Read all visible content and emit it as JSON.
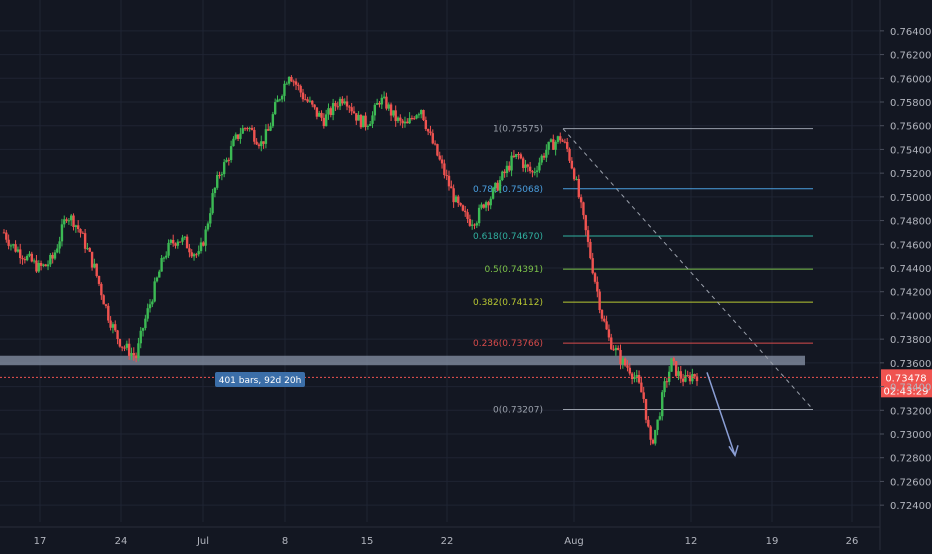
{
  "chart_data": {
    "type": "candlestick",
    "instrument_hint": "",
    "colors": {
      "background": "#131722",
      "up": "#26a69a",
      "up_body": "#3cba54",
      "down": "#ef5350",
      "grid": "#1f2433",
      "axis_text": "#b2b5be",
      "support_band": "#8a94a8",
      "last_price_badge": "#ef5350",
      "range_label_bg": "#3b6ea8",
      "projection_arrow": "#8b9fd6",
      "fib_1": "#9aa0ab",
      "fib_0786": "#4a9fe0",
      "fib_0618": "#30b0a0",
      "fib_05": "#7cc24a",
      "fib_0382": "#b8c832",
      "fib_0236": "#d84b4b",
      "fib_0": "#9aa0ab"
    },
    "y_axis": {
      "ylim": [
        0.723,
        0.765
      ],
      "ticks": [
        "0.76400",
        "0.76200",
        "0.76000",
        "0.75800",
        "0.75600",
        "0.75400",
        "0.75200",
        "0.75000",
        "0.74800",
        "0.74600",
        "0.74400",
        "0.74200",
        "0.74000",
        "0.73800",
        "0.73600",
        "0.73400",
        "0.73200",
        "0.73000",
        "0.72800",
        "0.72600",
        "0.72400"
      ]
    },
    "x_axis": {
      "tick_labels": [
        "17",
        "24",
        "Jul",
        "8",
        "15",
        "22",
        "Aug",
        "12",
        "19",
        "26"
      ]
    },
    "last_price": {
      "value": 0.73478,
      "label": "0.73478",
      "timer": "02:43:29"
    },
    "range_label": "401 bars, 92d 20h",
    "support_zone": [
      0.7366,
      0.7358
    ],
    "fibonacci": [
      {
        "label": "1(0.75575)",
        "value": 0.75575,
        "key": "fib_1"
      },
      {
        "label": "0.786(0.75068)",
        "value": 0.75068,
        "key": "fib_0786"
      },
      {
        "label": "0.618(0.74670)",
        "value": 0.7467,
        "key": "fib_0618"
      },
      {
        "label": "0.5(0.74391)",
        "value": 0.74391,
        "key": "fib_05"
      },
      {
        "label": "0.382(0.74112)",
        "value": 0.74112,
        "key": "fib_0382"
      },
      {
        "label": "0.236(0.73766)",
        "value": 0.73766,
        "key": "fib_0236"
      },
      {
        "label": "0(0.73207)",
        "value": 0.73207,
        "key": "fib_0"
      }
    ],
    "price_path": [
      0.747,
      0.746,
      0.7455,
      0.745,
      0.7445,
      0.744,
      0.7442,
      0.7448,
      0.7465,
      0.7485,
      0.748,
      0.747,
      0.7455,
      0.744,
      0.742,
      0.74,
      0.7385,
      0.7375,
      0.737,
      0.7365,
      0.739,
      0.741,
      0.743,
      0.745,
      0.746,
      0.7465,
      0.7462,
      0.7455,
      0.745,
      0.747,
      0.75,
      0.752,
      0.753,
      0.7545,
      0.7555,
      0.756,
      0.7552,
      0.7545,
      0.7555,
      0.7575,
      0.759,
      0.7605,
      0.7595,
      0.7585,
      0.7578,
      0.757,
      0.7565,
      0.7572,
      0.758,
      0.7585,
      0.7575,
      0.7565,
      0.7562,
      0.7568,
      0.7582,
      0.7578,
      0.7568,
      0.7562,
      0.756,
      0.757,
      0.7575,
      0.7555,
      0.754,
      0.7525,
      0.751,
      0.7495,
      0.7485,
      0.748,
      0.7482,
      0.7495,
      0.75,
      0.751,
      0.752,
      0.753,
      0.7535,
      0.7525,
      0.752,
      0.753,
      0.754,
      0.7545,
      0.755,
      0.754,
      0.752,
      0.749,
      0.746,
      0.743,
      0.74,
      0.738,
      0.737,
      0.736,
      0.7355,
      0.7345,
      0.733,
      0.729,
      0.731,
      0.734,
      0.736,
      0.735,
      0.7345,
      0.735
    ],
    "projection_target": 0.7282
  }
}
